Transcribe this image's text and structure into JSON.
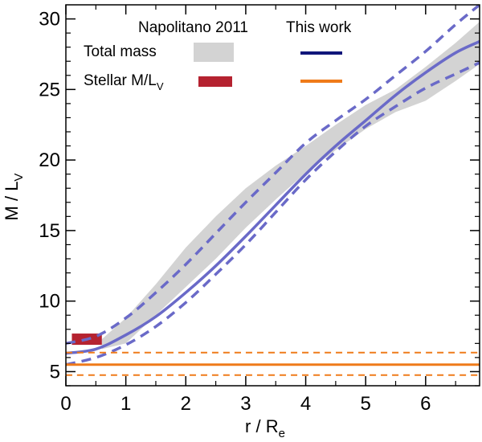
{
  "chart_data": {
    "type": "line",
    "xlabel": "r / R",
    "xlabel_sub": "e",
    "ylabel": "M / L",
    "ylabel_sub": "V",
    "xlim": [
      0,
      6.9
    ],
    "ylim": [
      4,
      31
    ],
    "xticks": [
      0,
      1,
      2,
      3,
      4,
      5,
      6
    ],
    "yticks": [
      5,
      10,
      15,
      20,
      25,
      30
    ],
    "grid": false,
    "legend": {
      "placement": "top-left",
      "col_headers": [
        "Napolitano 2011",
        "This work"
      ],
      "rows": [
        {
          "label": "Total mass",
          "label_sub": ""
        },
        {
          "label": "Stellar M/L",
          "label_sub": "V"
        }
      ]
    },
    "colors": {
      "this_work_total": "#6a6ac8",
      "this_work_total_legend": "#10167a",
      "napolitano_band": "#d3d3d3",
      "stellar_this_work": "#ef7b1a",
      "stellar_napolitano": "#b52230"
    },
    "series": [
      {
        "name": "This work total mass (median)",
        "style": "solid",
        "x": [
          0.0,
          0.5,
          1.0,
          1.5,
          2.0,
          2.5,
          3.0,
          3.5,
          4.0,
          4.5,
          5.0,
          5.5,
          6.0,
          6.5,
          6.9
        ],
        "y": [
          6.3,
          6.6,
          7.6,
          8.9,
          10.6,
          12.5,
          14.6,
          16.8,
          19.0,
          21.0,
          22.8,
          24.6,
          26.2,
          27.6,
          28.4
        ]
      },
      {
        "name": "This work total mass (upper)",
        "style": "dashed",
        "x": [
          0.0,
          0.5,
          1.0,
          1.5,
          2.0,
          2.5,
          3.0,
          3.5,
          4.0,
          4.5,
          5.0,
          5.5,
          6.0,
          6.5,
          6.9
        ],
        "y": [
          7.0,
          7.5,
          8.8,
          10.6,
          12.6,
          14.8,
          17.0,
          19.1,
          21.2,
          22.8,
          24.3,
          26.0,
          27.7,
          29.6,
          31.0
        ]
      },
      {
        "name": "This work total mass (lower)",
        "style": "dashed",
        "x": [
          0.0,
          0.5,
          1.0,
          1.5,
          2.0,
          2.5,
          3.0,
          3.5,
          4.0,
          4.5,
          5.0,
          5.5,
          6.0,
          6.5,
          6.9
        ],
        "y": [
          5.5,
          6.0,
          6.9,
          8.2,
          9.9,
          11.9,
          14.0,
          16.3,
          18.6,
          20.6,
          22.4,
          23.8,
          25.1,
          26.1,
          26.9
        ]
      },
      {
        "name": "This work stellar M/L",
        "style": "solid",
        "x": [
          0,
          6.9
        ],
        "y": [
          5.5,
          5.5
        ]
      },
      {
        "name": "This work stellar M/L (upper)",
        "style": "dashed",
        "x": [
          0,
          6.9
        ],
        "y": [
          6.35,
          6.35
        ]
      },
      {
        "name": "This work stellar M/L (lower)",
        "style": "dashed",
        "x": [
          0,
          6.9
        ],
        "y": [
          4.75,
          4.75
        ]
      }
    ],
    "napolitano_band": {
      "x": [
        0.6,
        1.0,
        1.5,
        2.0,
        2.5,
        3.0,
        3.5,
        4.0,
        4.5,
        5.0,
        5.5,
        6.0,
        6.5,
        6.9
      ],
      "upper": [
        7.3,
        8.8,
        11.2,
        13.8,
        16.0,
        18.0,
        19.6,
        21.0,
        22.5,
        23.9,
        25.0,
        26.6,
        28.3,
        29.8
      ],
      "lower": [
        6.6,
        7.0,
        9.0,
        11.0,
        13.0,
        15.2,
        17.2,
        19.1,
        20.7,
        22.2,
        23.4,
        24.2,
        25.6,
        26.8
      ]
    },
    "napolitano_stellar": {
      "x": [
        0.1,
        0.6
      ],
      "y": [
        6.9,
        7.7
      ]
    }
  }
}
